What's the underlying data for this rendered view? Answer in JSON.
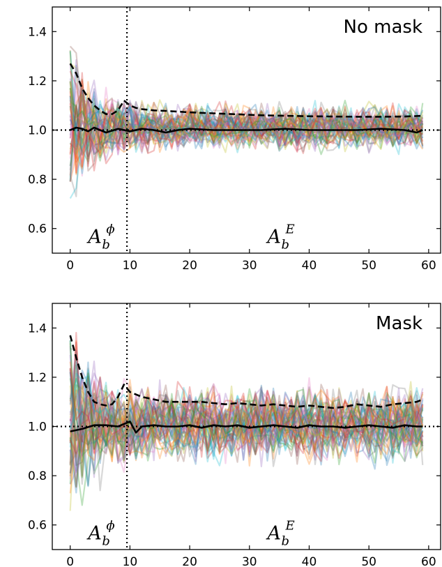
{
  "chart_data": [
    {
      "type": "line",
      "title": "No mask",
      "xlim": [
        -3,
        62
      ],
      "ylim": [
        0.5,
        1.5
      ],
      "xticks": [
        0,
        10,
        20,
        30,
        40,
        50,
        60
      ],
      "yticks": [
        0.6,
        0.8,
        1.0,
        1.2,
        1.4
      ],
      "hline": 1.0,
      "vline": 9.5,
      "annotations": [
        {
          "base": "A",
          "sub": "b",
          "sup": "ϕ",
          "x": 3,
          "y": 0.53
        },
        {
          "base": "A",
          "sub": "b",
          "sup": "E",
          "x": 33,
          "y": 0.53
        }
      ],
      "noise_amplitude_start": 0.45,
      "noise_amplitude_end": 0.12,
      "series": [
        {
          "style": "dashed",
          "x": [
            0,
            1,
            2,
            3,
            4,
            5,
            6,
            7,
            8,
            9,
            10,
            11,
            12,
            14,
            16,
            18,
            20,
            24,
            28,
            32,
            36,
            40,
            44,
            48,
            52,
            56,
            59
          ],
          "values": [
            1.27,
            1.23,
            1.17,
            1.13,
            1.1,
            1.08,
            1.065,
            1.065,
            1.08,
            1.12,
            1.1,
            1.09,
            1.085,
            1.08,
            1.078,
            1.075,
            1.072,
            1.068,
            1.064,
            1.06,
            1.058,
            1.056,
            1.055,
            1.054,
            1.054,
            1.055,
            1.058
          ]
        },
        {
          "style": "solid",
          "x": [
            0,
            1,
            2,
            3,
            4,
            5,
            6,
            8,
            10,
            12,
            14,
            16,
            18,
            20,
            24,
            28,
            32,
            36,
            40,
            44,
            48,
            52,
            56,
            58,
            59
          ],
          "values": [
            1.0,
            1.01,
            1.005,
            0.995,
            1.01,
            1.0,
            0.99,
            1.005,
            0.995,
            1.005,
            1.0,
            0.99,
            1.0,
            1.005,
            1.0,
            1.0,
            1.0,
            1.005,
            1.0,
            1.0,
            1.0,
            1.005,
            1.0,
            0.99,
            1.0
          ]
        }
      ]
    },
    {
      "type": "line",
      "title": "Mask",
      "xlim": [
        -3,
        62
      ],
      "ylim": [
        0.5,
        1.5
      ],
      "xticks": [
        0,
        10,
        20,
        30,
        40,
        50,
        60
      ],
      "yticks": [
        0.6,
        0.8,
        1.0,
        1.2,
        1.4
      ],
      "hline": 1.0,
      "vline": 9.5,
      "annotations": [
        {
          "base": "A",
          "sub": "b",
          "sup": "ϕ",
          "x": 3,
          "y": 0.53
        },
        {
          "base": "A",
          "sub": "b",
          "sup": "E",
          "x": 33,
          "y": 0.53
        }
      ],
      "noise_amplitude_start": 0.55,
      "noise_amplitude_end": 0.2,
      "series": [
        {
          "style": "dashed",
          "x": [
            0,
            1,
            2,
            3,
            4,
            5,
            6,
            7,
            8,
            9,
            10,
            11,
            12,
            14,
            16,
            18,
            20,
            22,
            24,
            26,
            28,
            30,
            32,
            34,
            36,
            38,
            40,
            42,
            44,
            46,
            48,
            50,
            52,
            54,
            56,
            58,
            59
          ],
          "values": [
            1.37,
            1.28,
            1.2,
            1.14,
            1.1,
            1.09,
            1.085,
            1.09,
            1.12,
            1.17,
            1.14,
            1.13,
            1.12,
            1.11,
            1.1,
            1.1,
            1.1,
            1.1,
            1.095,
            1.09,
            1.095,
            1.09,
            1.085,
            1.09,
            1.085,
            1.08,
            1.085,
            1.08,
            1.075,
            1.08,
            1.09,
            1.085,
            1.08,
            1.09,
            1.095,
            1.1,
            1.11
          ]
        },
        {
          "style": "solid",
          "x": [
            0,
            2,
            4,
            6,
            8,
            10,
            11,
            12,
            14,
            16,
            18,
            20,
            22,
            24,
            26,
            28,
            30,
            32,
            34,
            36,
            38,
            40,
            42,
            44,
            46,
            48,
            50,
            52,
            54,
            56,
            58,
            59
          ],
          "values": [
            0.98,
            0.99,
            1.005,
            1.005,
            1.0,
            1.02,
            0.975,
            1.0,
            1.005,
            1.0,
            1.0,
            1.005,
            0.995,
            1.005,
            1.0,
            1.005,
            0.995,
            1.0,
            1.005,
            1.0,
            0.995,
            1.005,
            1.0,
            1.0,
            0.995,
            1.0,
            1.005,
            1.0,
            0.995,
            1.005,
            1.0,
            1.0
          ]
        }
      ]
    }
  ],
  "palette": [
    "#1f77b4",
    "#ff7f0e",
    "#2ca02c",
    "#d62728",
    "#9467bd",
    "#8c564b",
    "#e377c2",
    "#7f7f7f",
    "#bcbd22",
    "#17becf"
  ]
}
